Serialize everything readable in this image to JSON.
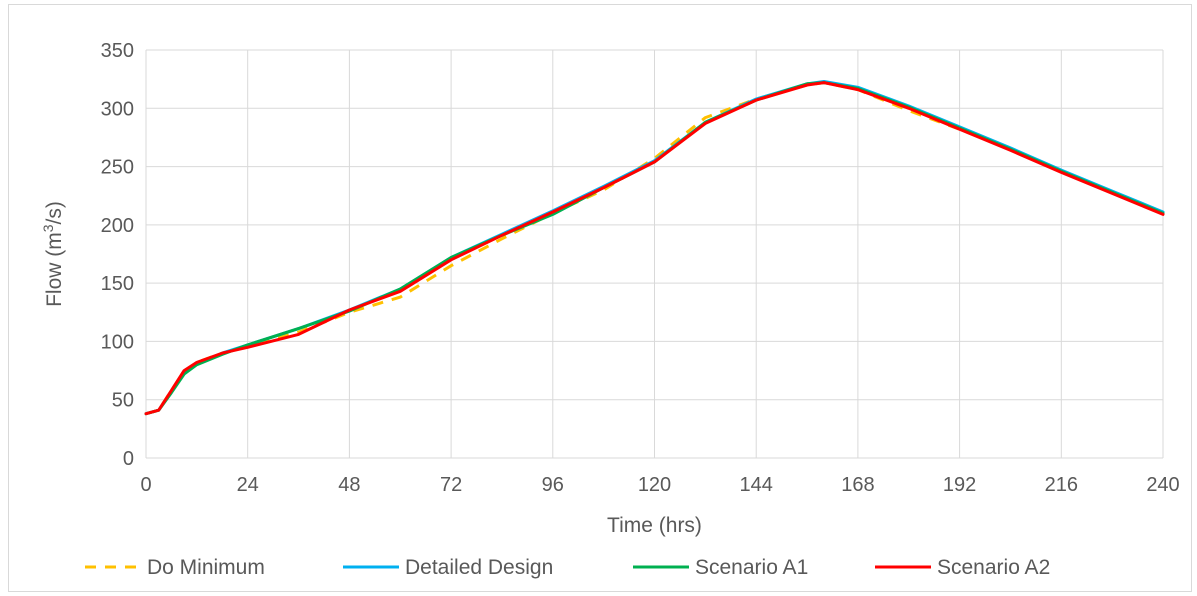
{
  "chart_data": {
    "type": "line",
    "title": "",
    "xlabel": "Time (hrs)",
    "ylabel": "Flow (m³/s)",
    "ylabel_parts": {
      "pre": "Flow (m",
      "sup": "3",
      "post": "/s)"
    },
    "xlim": [
      0,
      240
    ],
    "ylim": [
      0,
      350
    ],
    "xticks": [
      "0",
      "24",
      "48",
      "72",
      "96",
      "120",
      "144",
      "168",
      "192",
      "216",
      "240"
    ],
    "yticks": [
      "0",
      "50",
      "100",
      "150",
      "200",
      "250",
      "300",
      "350"
    ],
    "grid": true,
    "legend_position": "bottom",
    "series": [
      {
        "name": "Do Minimum",
        "color": "#FFC000",
        "dash": "dashed",
        "x": [
          0,
          3,
          6,
          9,
          12,
          18,
          24,
          36,
          48,
          60,
          72,
          84,
          96,
          108,
          120,
          132,
          144,
          156,
          160,
          168,
          180,
          192,
          204,
          216,
          228,
          240
        ],
        "y": [
          38,
          41,
          58,
          74,
          82,
          90,
          96,
          108,
          125,
          138,
          165,
          188,
          210,
          230,
          257,
          292,
          308,
          320,
          322,
          316,
          298,
          282,
          265,
          246,
          228,
          210
        ]
      },
      {
        "name": "Detailed Design",
        "color": "#00B0F0",
        "dash": "solid",
        "x": [
          0,
          3,
          6,
          9,
          12,
          18,
          24,
          36,
          48,
          60,
          72,
          84,
          96,
          108,
          120,
          132,
          144,
          156,
          160,
          168,
          180,
          192,
          204,
          216,
          228,
          240
        ],
        "y": [
          38,
          41,
          57,
          73,
          81,
          90,
          97,
          111,
          127,
          145,
          172,
          192,
          212,
          233,
          255,
          288,
          308,
          321,
          323,
          318,
          302,
          284,
          266,
          247,
          229,
          211
        ]
      },
      {
        "name": "Scenario A1",
        "color": "#00B050",
        "dash": "solid",
        "x": [
          0,
          3,
          6,
          9,
          12,
          18,
          24,
          36,
          48,
          60,
          72,
          84,
          96,
          108,
          120,
          132,
          144,
          156,
          160,
          168,
          180,
          192,
          204,
          216,
          228,
          240
        ],
        "y": [
          38,
          41,
          56,
          72,
          80,
          89,
          97,
          111,
          126,
          145,
          172,
          191,
          209,
          232,
          254,
          288,
          307,
          321,
          322,
          317,
          301,
          283,
          265,
          246,
          228,
          210
        ]
      },
      {
        "name": "Scenario A2",
        "color": "#FF0000",
        "dash": "solid",
        "x": [
          0,
          3,
          6,
          9,
          12,
          18,
          24,
          36,
          48,
          60,
          72,
          84,
          96,
          108,
          120,
          132,
          144,
          156,
          160,
          168,
          180,
          192,
          204,
          216,
          228,
          240
        ],
        "y": [
          38,
          41,
          58,
          75,
          82,
          90,
          95,
          106,
          127,
          143,
          170,
          191,
          211,
          232,
          254,
          287,
          307,
          320,
          322,
          316,
          300,
          282,
          264,
          245,
          227,
          209
        ]
      }
    ]
  }
}
